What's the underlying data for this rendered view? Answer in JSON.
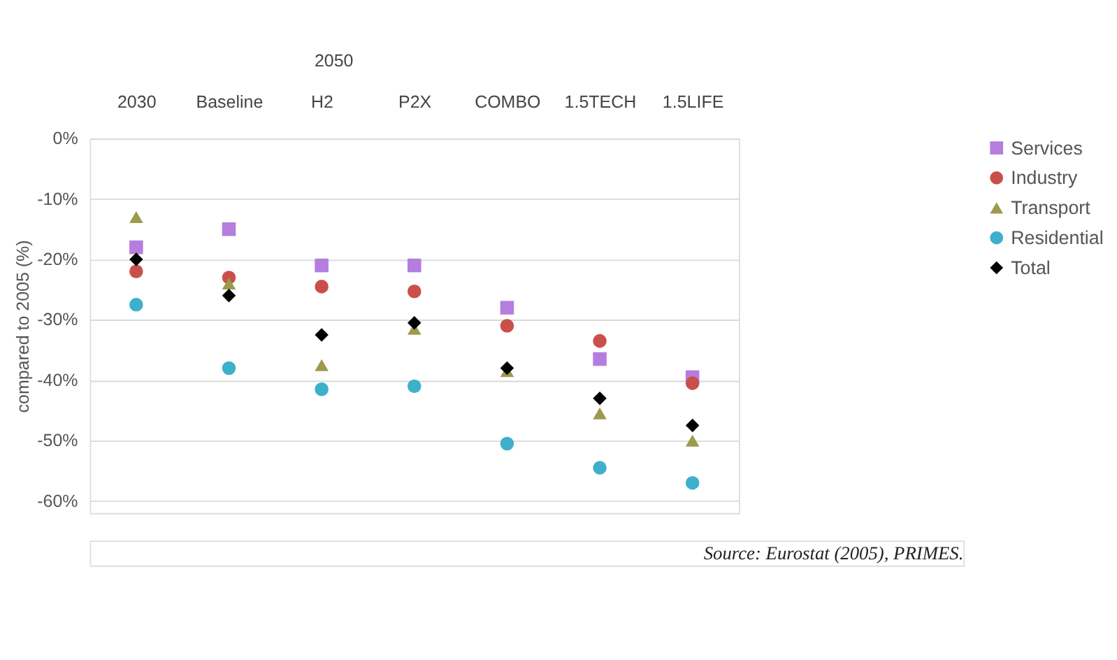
{
  "chart_data": {
    "type": "scatter",
    "ylabel": "compared to 2005 (%)",
    "categories": [
      "2030",
      "Baseline",
      "H2",
      "P2X",
      "COMBO",
      "1.5TECH",
      "1.5LIFE"
    ],
    "series": [
      {
        "name": "Services",
        "color": "#b57ede",
        "marker": "square",
        "values": [
          -18,
          -15,
          -21,
          -21,
          -28,
          -36.5,
          -39.5
        ]
      },
      {
        "name": "Industry",
        "color": "#c9504a",
        "marker": "circle",
        "values": [
          -22,
          -23,
          -24.5,
          -25.3,
          -31,
          -33.5,
          -40.5
        ]
      },
      {
        "name": "Transport",
        "color": "#9c9a4c",
        "marker": "triangle",
        "values": [
          -13,
          -24,
          -37.5,
          -31.5,
          -38.5,
          -45.5,
          -50
        ]
      },
      {
        "name": "Residential",
        "color": "#3eb0cc",
        "marker": "circle",
        "values": [
          -27.5,
          -38,
          -41.5,
          -41,
          -50.5,
          -54.5,
          -57
        ]
      },
      {
        "name": "Total",
        "color": "#000000",
        "marker": "diamond",
        "values": [
          -20,
          -26,
          -32.5,
          -30.5,
          -38,
          -43,
          -47.5
        ]
      }
    ],
    "ylim": [
      -62,
      0
    ],
    "yticks": [
      {
        "value": 0,
        "label": "0%"
      },
      {
        "value": -10,
        "label": "-10%"
      },
      {
        "value": -20,
        "label": "-20%"
      },
      {
        "value": -30,
        "label": "-30%"
      },
      {
        "value": -40,
        "label": "-40%"
      },
      {
        "value": -50,
        "label": "-50%"
      },
      {
        "value": -60,
        "label": "-60%"
      }
    ],
    "grid": "y",
    "legend": "right",
    "annotations": [
      "2050",
      "Source: Eurostat (2005), PRIMES."
    ]
  }
}
